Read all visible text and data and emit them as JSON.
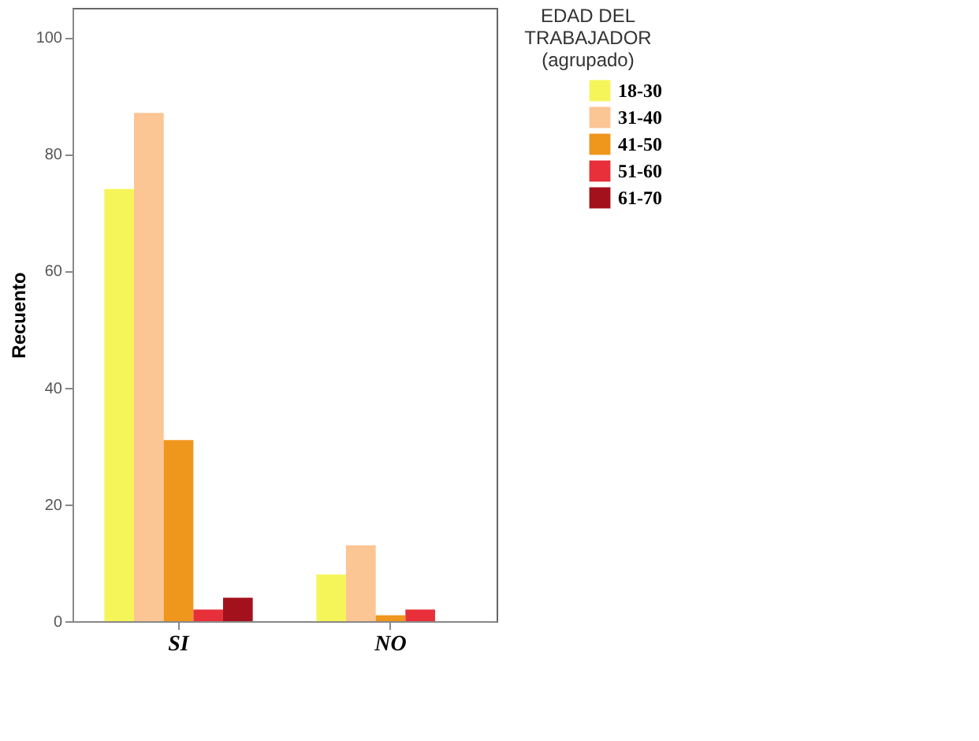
{
  "chart_data": {
    "type": "bar",
    "ylabel": "Recuento",
    "legend_title": "EDAD DEL TRABAJADOR (agrupado)",
    "categories": [
      "SI",
      "NO"
    ],
    "series": [
      {
        "name": "18-30",
        "color": "#f5f55a",
        "values": [
          74,
          8
        ]
      },
      {
        "name": "31-40",
        "color": "#fbc594",
        "values": [
          87,
          13
        ]
      },
      {
        "name": "41-50",
        "color": "#ef961c",
        "values": [
          31,
          1
        ]
      },
      {
        "name": "51-60",
        "color": "#e8303a",
        "values": [
          2,
          2
        ]
      },
      {
        "name": "61-70",
        "color": "#a3121c",
        "values": [
          4,
          null
        ]
      }
    ],
    "ylim": [
      0,
      105
    ],
    "yticks": [
      0,
      20,
      40,
      60,
      80,
      100
    ],
    "grid": false,
    "legend": "right"
  }
}
